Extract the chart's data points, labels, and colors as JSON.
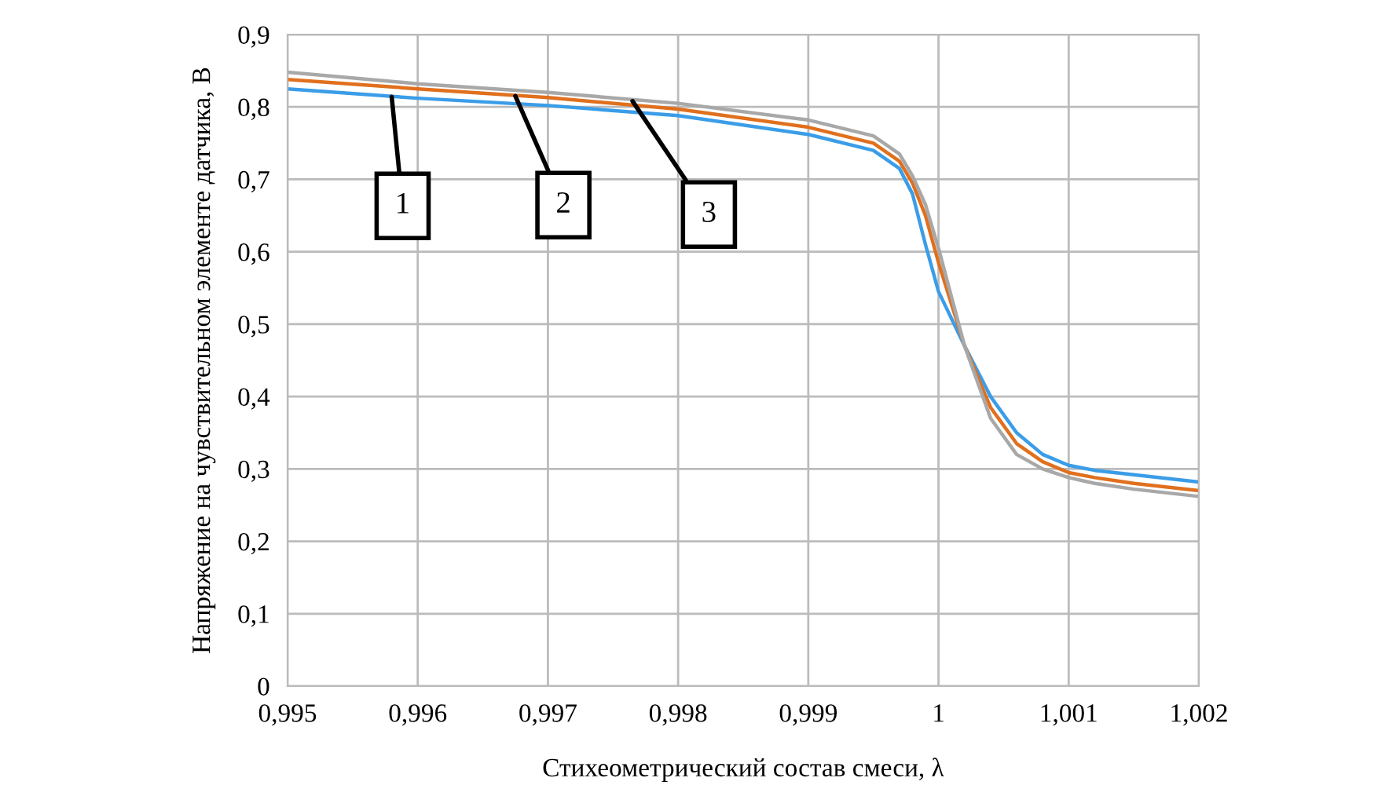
{
  "chart_data": {
    "type": "line",
    "xlabel": "Стихеометрический состав смеси, λ",
    "ylabel": "Напряжение на чувствительном элементе датчика, В",
    "x": [
      0.995,
      0.996,
      0.997,
      0.998,
      0.999,
      0.9995,
      0.9997,
      0.9998,
      0.9999,
      1.0,
      1.0002,
      1.0004,
      1.0006,
      1.0008,
      1.001,
      1.0012,
      1.0015,
      1.002
    ],
    "series": [
      {
        "color": "#3b9de8",
        "values": [
          0.825,
          0.812,
          0.802,
          0.788,
          0.762,
          0.74,
          0.715,
          0.68,
          0.61,
          0.545,
          0.47,
          0.4,
          0.35,
          0.32,
          0.305,
          0.298,
          0.292,
          0.282
        ]
      },
      {
        "color": "#e0701e",
        "values": [
          0.838,
          0.825,
          0.813,
          0.797,
          0.772,
          0.75,
          0.725,
          0.695,
          0.65,
          0.585,
          0.47,
          0.385,
          0.335,
          0.31,
          0.295,
          0.288,
          0.28,
          0.27
        ]
      },
      {
        "color": "#a8a8a8",
        "values": [
          0.848,
          0.832,
          0.82,
          0.805,
          0.782,
          0.76,
          0.735,
          0.705,
          0.665,
          0.605,
          0.47,
          0.37,
          0.32,
          0.3,
          0.288,
          0.28,
          0.272,
          0.262
        ]
      }
    ],
    "annotations": [
      {
        "text": "1",
        "x": 0.9958,
        "y": 0.814
      },
      {
        "text": "2",
        "x": 0.99675,
        "y": 0.815
      },
      {
        "text": "3",
        "x": 0.99765,
        "y": 0.808
      }
    ],
    "xlim": [
      0.995,
      1.002
    ],
    "xticks": [
      {
        "value": 0.995,
        "label": "0,995"
      },
      {
        "value": 0.996,
        "label": "0,996"
      },
      {
        "value": 0.997,
        "label": "0,997"
      },
      {
        "value": 0.998,
        "label": "0,998"
      },
      {
        "value": 0.999,
        "label": "0,999"
      },
      1,
      {
        "value": 1.001,
        "label": "1,001"
      },
      {
        "value": 1.002,
        "label": "1,002"
      }
    ],
    "ylim": [
      0,
      0.9
    ],
    "yticks": [
      0,
      {
        "value": 0.1,
        "label": "0,1"
      },
      {
        "value": 0.2,
        "label": "0,2"
      },
      {
        "value": 0.3,
        "label": "0,3"
      },
      {
        "value": 0.4,
        "label": "0,4"
      },
      {
        "value": 0.5,
        "label": "0,5"
      },
      {
        "value": 0.6,
        "label": "0,6"
      },
      {
        "value": 0.7,
        "label": "0,7"
      },
      {
        "value": 0.8,
        "label": "0,8"
      },
      {
        "value": 0.9,
        "label": "0,9"
      }
    ],
    "grid": true,
    "marker": "none",
    "line_style": "solid"
  }
}
